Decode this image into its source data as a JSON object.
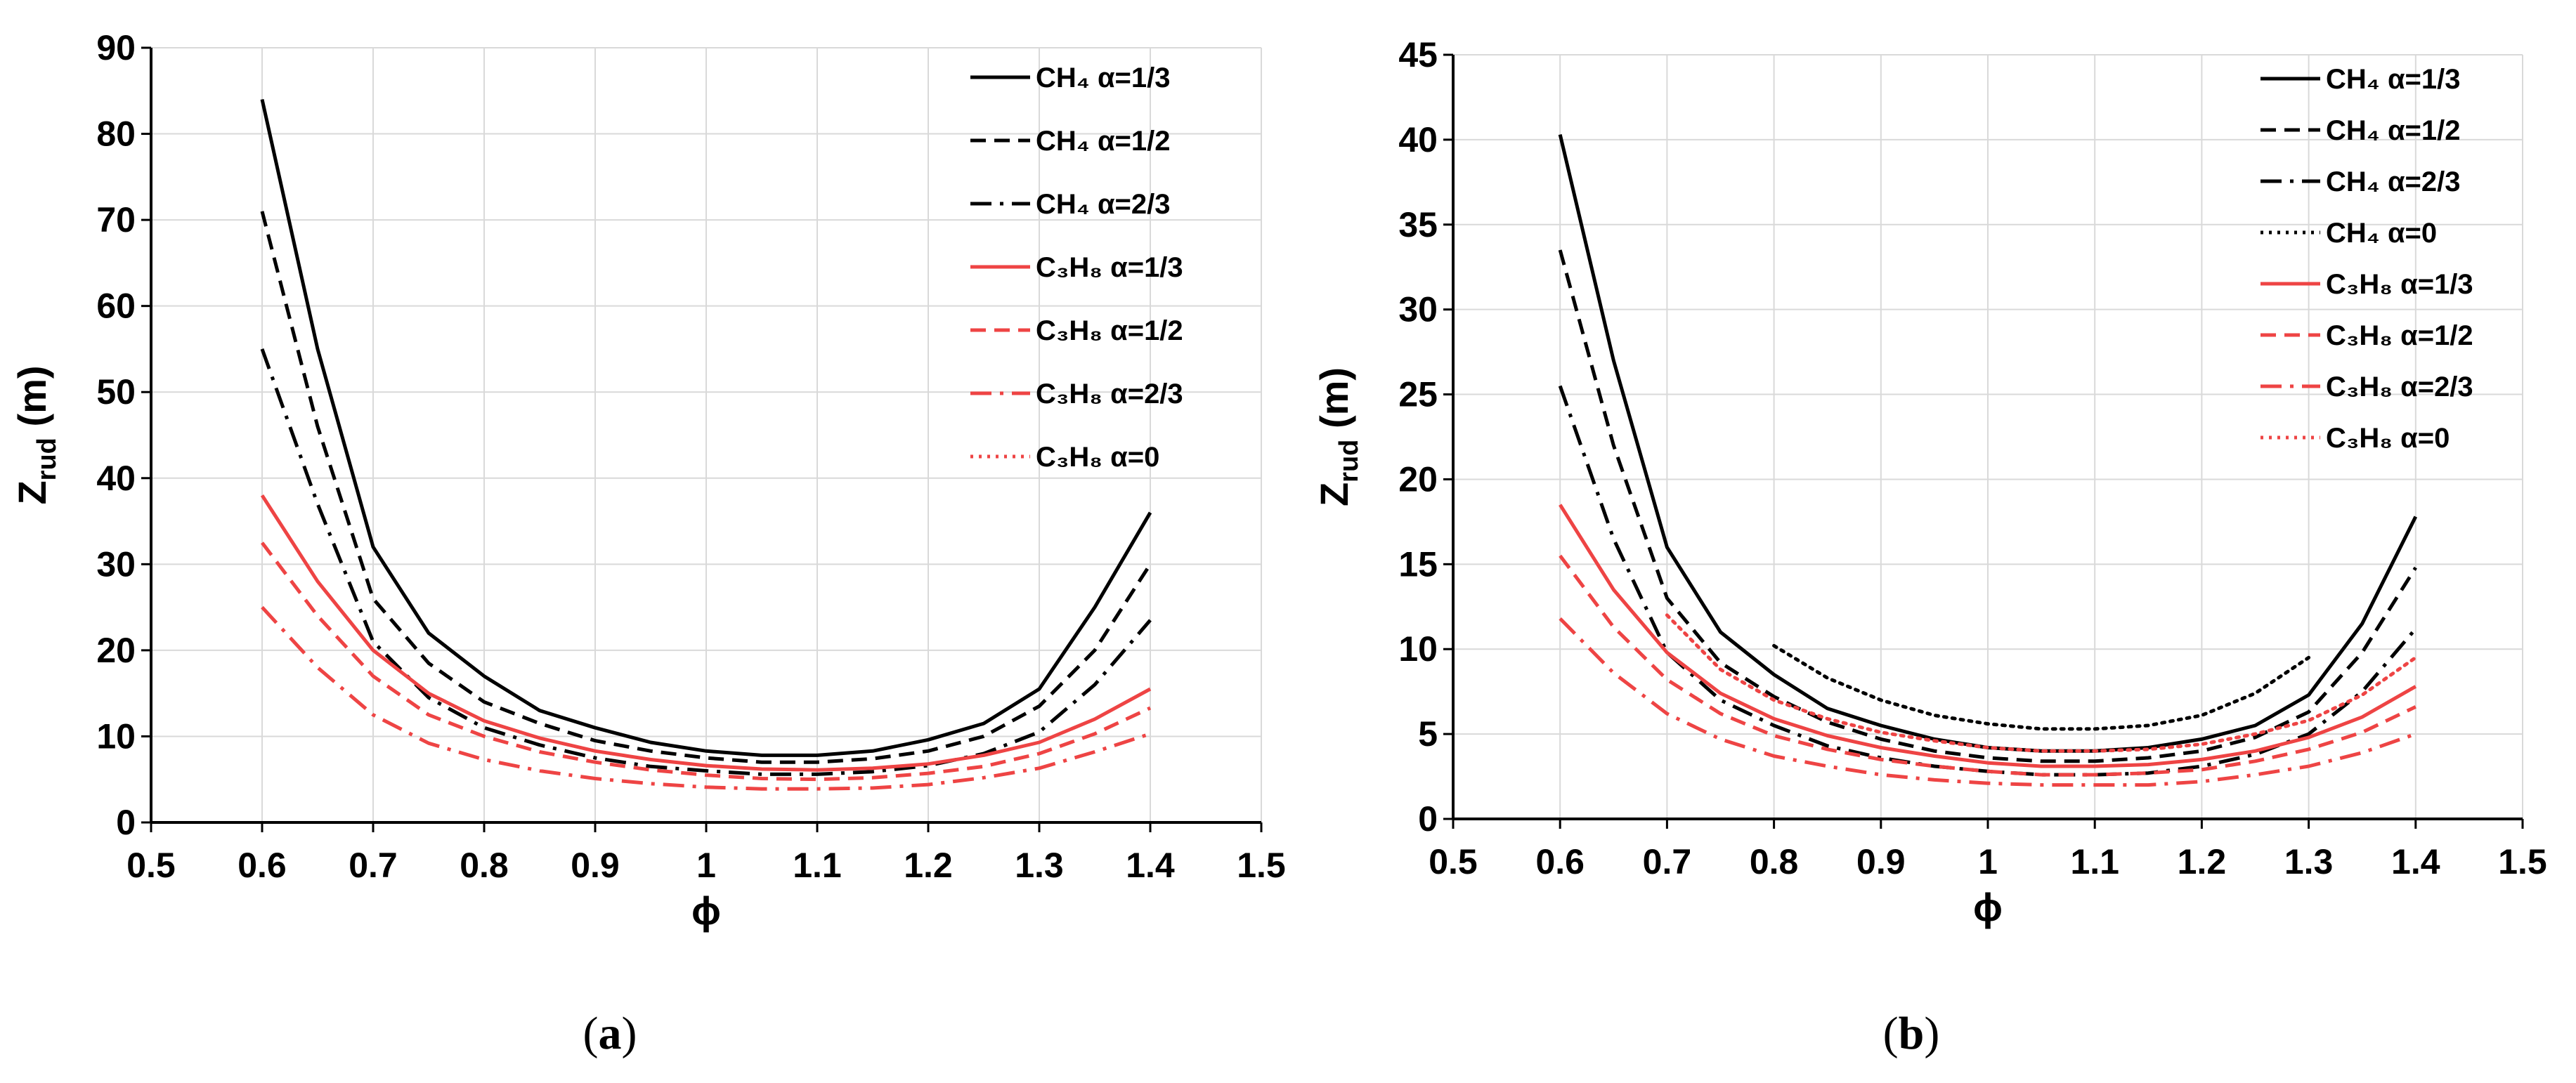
{
  "figure": {
    "panel_labels": [
      "(a)",
      "(b)"
    ]
  },
  "colors": {
    "ch4": "#000000",
    "c3h8": "#ee4444",
    "grid": "#d9d9d9",
    "axis": "#000000"
  },
  "chart_data": [
    {
      "type": "line",
      "panel": "(a)",
      "xlabel": "ϕ",
      "ylabel": "Z_rud (m)",
      "ylabel_main": "Z",
      "ylabel_sub": "rud",
      "ylabel_unit": " (m)",
      "xlim": [
        0.5,
        1.5
      ],
      "ylim": [
        0,
        90
      ],
      "xticks": [
        0.5,
        0.6,
        0.7,
        0.8,
        0.9,
        1.0,
        1.1,
        1.2,
        1.3,
        1.4,
        1.5
      ],
      "xtick_labels": [
        "0.5",
        "0.6",
        "0.7",
        "0.8",
        "0.9",
        "1",
        "1.1",
        "1.2",
        "1.3",
        "1.4",
        "1.5"
      ],
      "yticks": [
        0,
        10,
        20,
        30,
        40,
        50,
        60,
        70,
        80,
        90
      ],
      "ytick_labels": [
        "0",
        "10",
        "20",
        "30",
        "40",
        "50",
        "60",
        "70",
        "80",
        "90"
      ],
      "grid": true,
      "legend_position": "top-right",
      "series": [
        {
          "name": "CH4 α=1/3",
          "fuel": "CH₄",
          "alpha": "α=1/3",
          "color": "#000000",
          "dash": "solid",
          "x": [
            0.6,
            0.65,
            0.7,
            0.75,
            0.8,
            0.85,
            0.9,
            0.95,
            1.0,
            1.05,
            1.1,
            1.15,
            1.2,
            1.25,
            1.3,
            1.35,
            1.4
          ],
          "y": [
            84,
            55,
            32,
            22,
            17,
            13,
            11,
            9.3,
            8.3,
            7.8,
            7.8,
            8.3,
            9.6,
            11.5,
            15.5,
            25,
            36
          ]
        },
        {
          "name": "CH4 α=1/2",
          "fuel": "CH₄",
          "alpha": "α=1/2",
          "color": "#000000",
          "dash": "dash",
          "x": [
            0.6,
            0.65,
            0.7,
            0.75,
            0.8,
            0.85,
            0.9,
            0.95,
            1.0,
            1.05,
            1.1,
            1.15,
            1.2,
            1.25,
            1.3,
            1.35,
            1.4
          ],
          "y": [
            71,
            46,
            26,
            18.5,
            14,
            11.5,
            9.5,
            8.3,
            7.5,
            7,
            7,
            7.4,
            8.3,
            10,
            13.5,
            20,
            30
          ]
        },
        {
          "name": "CH4 α=2/3",
          "fuel": "CH₄",
          "alpha": "α=2/3",
          "color": "#000000",
          "dash": "dashdot",
          "x": [
            0.6,
            0.65,
            0.7,
            0.75,
            0.8,
            0.85,
            0.9,
            0.95,
            1.0,
            1.05,
            1.1,
            1.15,
            1.2,
            1.25,
            1.3,
            1.35,
            1.4
          ],
          "y": [
            55,
            37,
            21,
            14.5,
            11,
            9,
            7.5,
            6.5,
            6,
            5.6,
            5.6,
            5.9,
            6.6,
            8,
            10.5,
            16,
            23.5
          ]
        },
        {
          "name": "C3H8 α=1/3",
          "fuel": "C₃H₈",
          "alpha": "α=1/3",
          "color": "#ee4444",
          "dash": "solid",
          "x": [
            0.6,
            0.65,
            0.7,
            0.75,
            0.8,
            0.85,
            0.9,
            0.95,
            1.0,
            1.05,
            1.1,
            1.15,
            1.2,
            1.25,
            1.3,
            1.35,
            1.4
          ],
          "y": [
            38,
            28,
            20,
            15,
            11.8,
            9.8,
            8.3,
            7.3,
            6.6,
            6.2,
            6.1,
            6.3,
            6.8,
            7.8,
            9.3,
            12,
            15.5
          ]
        },
        {
          "name": "C3H8 α=1/2",
          "fuel": "C₃H₈",
          "alpha": "α=1/2",
          "color": "#ee4444",
          "dash": "dash",
          "x": [
            0.6,
            0.65,
            0.7,
            0.75,
            0.8,
            0.85,
            0.9,
            0.95,
            1.0,
            1.05,
            1.1,
            1.15,
            1.2,
            1.25,
            1.3,
            1.35,
            1.4
          ],
          "y": [
            32.5,
            24,
            17,
            12.5,
            10,
            8.2,
            7,
            6.1,
            5.5,
            5.1,
            5,
            5.2,
            5.7,
            6.5,
            8,
            10.3,
            13.3
          ]
        },
        {
          "name": "C3H8 α=2/3",
          "fuel": "C₃H₈",
          "alpha": "α=2/3",
          "color": "#ee4444",
          "dash": "dashdot",
          "x": [
            0.6,
            0.65,
            0.7,
            0.75,
            0.8,
            0.85,
            0.9,
            0.95,
            1.0,
            1.05,
            1.1,
            1.15,
            1.2,
            1.25,
            1.3,
            1.35,
            1.4
          ],
          "y": [
            25,
            18,
            12.5,
            9.2,
            7.3,
            6,
            5.1,
            4.5,
            4.1,
            3.9,
            3.9,
            4,
            4.4,
            5.2,
            6.3,
            8.2,
            10.3
          ]
        },
        {
          "name": "C3H8 α=0",
          "fuel": "C₃H₈",
          "alpha": "α=0",
          "color": "#ee4444",
          "dash": "dot",
          "x": [],
          "y": []
        }
      ]
    },
    {
      "type": "line",
      "panel": "(b)",
      "xlabel": "ϕ",
      "ylabel": "Z_rud (m)",
      "ylabel_main": "Z",
      "ylabel_sub": "rud",
      "ylabel_unit": " (m)",
      "xlim": [
        0.5,
        1.5
      ],
      "ylim": [
        0,
        45
      ],
      "xticks": [
        0.5,
        0.6,
        0.7,
        0.8,
        0.9,
        1.0,
        1.1,
        1.2,
        1.3,
        1.4,
        1.5
      ],
      "xtick_labels": [
        "0.5",
        "0.6",
        "0.7",
        "0.8",
        "0.9",
        "1",
        "1.1",
        "1.2",
        "1.3",
        "1.4",
        "1.5"
      ],
      "yticks": [
        0,
        5,
        10,
        15,
        20,
        25,
        30,
        35,
        40,
        45
      ],
      "ytick_labels": [
        "0",
        "5",
        "10",
        "15",
        "20",
        "25",
        "30",
        "35",
        "40",
        "45"
      ],
      "grid": true,
      "legend_position": "top-right",
      "series": [
        {
          "name": "CH4 α=1/3",
          "fuel": "CH₄",
          "alpha": "α=1/3",
          "color": "#000000",
          "dash": "solid",
          "x": [
            0.6,
            0.65,
            0.7,
            0.75,
            0.8,
            0.85,
            0.9,
            0.95,
            1.0,
            1.05,
            1.1,
            1.15,
            1.2,
            1.25,
            1.3,
            1.35,
            1.4
          ],
          "y": [
            40.3,
            27,
            16,
            11,
            8.5,
            6.5,
            5.5,
            4.7,
            4.2,
            4,
            4,
            4.2,
            4.7,
            5.5,
            7.3,
            11.5,
            17.8
          ]
        },
        {
          "name": "CH4 α=1/2",
          "fuel": "CH₄",
          "alpha": "α=1/2",
          "color": "#000000",
          "dash": "dash",
          "x": [
            0.6,
            0.65,
            0.7,
            0.75,
            0.8,
            0.85,
            0.9,
            0.95,
            1.0,
            1.05,
            1.1,
            1.15,
            1.2,
            1.25,
            1.3,
            1.35,
            1.4
          ],
          "y": [
            33.5,
            22,
            13,
            9.2,
            7.2,
            5.7,
            4.7,
            4,
            3.6,
            3.4,
            3.4,
            3.6,
            4,
            4.8,
            6.3,
            9.8,
            14.8
          ]
        },
        {
          "name": "CH4 α=2/3",
          "fuel": "CH₄",
          "alpha": "α=2/3",
          "color": "#000000",
          "dash": "dashdot",
          "x": [
            0.6,
            0.65,
            0.7,
            0.75,
            0.8,
            0.85,
            0.9,
            0.95,
            1.0,
            1.05,
            1.1,
            1.15,
            1.2,
            1.25,
            1.3,
            1.35,
            1.4
          ],
          "y": [
            25.5,
            16.5,
            9.8,
            7,
            5.5,
            4.3,
            3.6,
            3.1,
            2.8,
            2.6,
            2.6,
            2.7,
            3.1,
            3.8,
            5,
            7.5,
            11.2
          ]
        },
        {
          "name": "CH4 α=0",
          "fuel": "CH₄",
          "alpha": "α=0",
          "color": "#000000",
          "dash": "dot",
          "x": [
            0.8,
            0.85,
            0.9,
            0.95,
            1.0,
            1.05,
            1.1,
            1.15,
            1.2,
            1.25,
            1.3
          ],
          "y": [
            10.2,
            8.3,
            7,
            6.1,
            5.6,
            5.3,
            5.3,
            5.5,
            6.1,
            7.4,
            9.5
          ]
        },
        {
          "name": "C3H8 α=1/3",
          "fuel": "C₃H₈",
          "alpha": "α=1/3",
          "color": "#ee4444",
          "dash": "solid",
          "x": [
            0.6,
            0.65,
            0.7,
            0.75,
            0.8,
            0.85,
            0.9,
            0.95,
            1.0,
            1.05,
            1.1,
            1.15,
            1.2,
            1.25,
            1.3,
            1.35,
            1.4
          ],
          "y": [
            18.5,
            13.5,
            9.8,
            7.4,
            5.9,
            4.9,
            4.2,
            3.7,
            3.3,
            3.1,
            3.1,
            3.2,
            3.5,
            4,
            4.8,
            6,
            7.8
          ]
        },
        {
          "name": "C3H8 α=1/2",
          "fuel": "C₃H₈",
          "alpha": "α=1/2",
          "color": "#ee4444",
          "dash": "dash",
          "x": [
            0.6,
            0.65,
            0.7,
            0.75,
            0.8,
            0.85,
            0.9,
            0.95,
            1.0,
            1.05,
            1.1,
            1.15,
            1.2,
            1.25,
            1.3,
            1.35,
            1.4
          ],
          "y": [
            15.5,
            11.3,
            8.2,
            6.2,
            4.9,
            4.1,
            3.5,
            3.1,
            2.8,
            2.6,
            2.6,
            2.7,
            2.9,
            3.4,
            4.1,
            5.1,
            6.6
          ]
        },
        {
          "name": "C3H8 α=2/3",
          "fuel": "C₃H₈",
          "alpha": "α=2/3",
          "color": "#ee4444",
          "dash": "dashdot",
          "x": [
            0.6,
            0.65,
            0.7,
            0.75,
            0.8,
            0.85,
            0.9,
            0.95,
            1.0,
            1.05,
            1.1,
            1.15,
            1.2,
            1.25,
            1.3,
            1.35,
            1.4
          ],
          "y": [
            11.8,
            8.6,
            6.2,
            4.7,
            3.7,
            3.1,
            2.6,
            2.3,
            2.1,
            2,
            2,
            2,
            2.2,
            2.6,
            3.1,
            3.9,
            5
          ]
        },
        {
          "name": "C3H8 α=0",
          "fuel": "C₃H₈",
          "alpha": "α=0",
          "color": "#ee4444",
          "dash": "dot",
          "x": [
            0.7,
            0.75,
            0.8,
            0.85,
            0.9,
            0.95,
            1.0,
            1.05,
            1.1,
            1.15,
            1.2,
            1.25,
            1.3,
            1.35,
            1.4
          ],
          "y": [
            12,
            8.8,
            7,
            5.9,
            5.1,
            4.6,
            4.2,
            4,
            4,
            4.1,
            4.4,
            5,
            5.8,
            7.3,
            9.5
          ]
        }
      ]
    }
  ]
}
